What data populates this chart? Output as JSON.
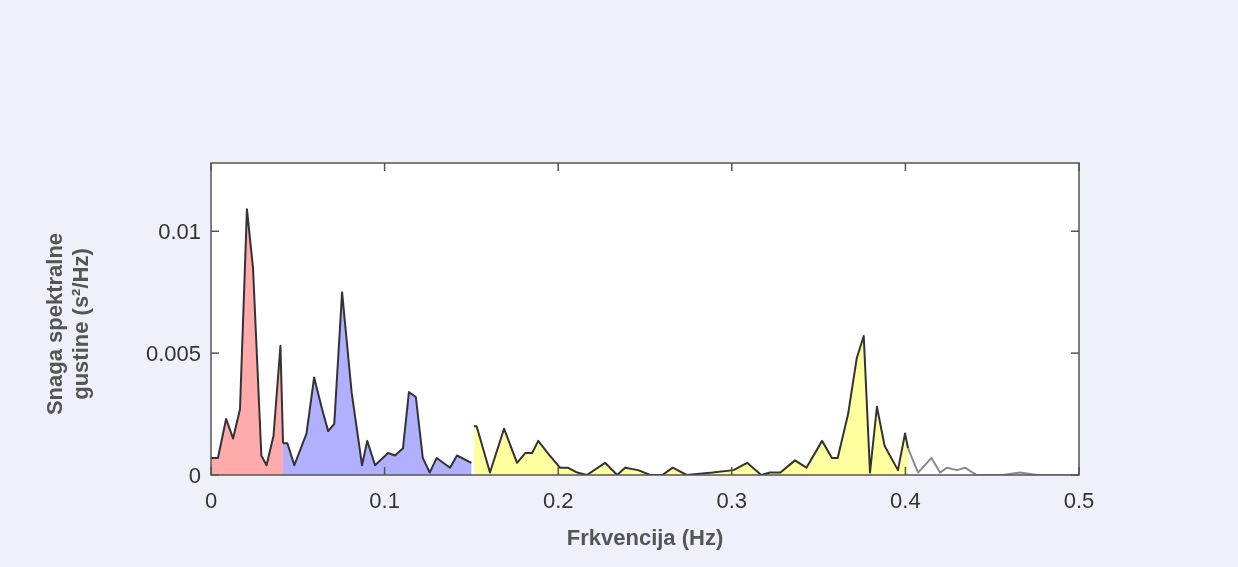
{
  "chart_data": {
    "type": "area",
    "xlabel": "Frkvencija (Hz)",
    "ylabel": "Snaga spektralne gustine (s²/Hz)",
    "xlim": [
      0,
      0.5
    ],
    "xticks": [
      0,
      0.1,
      0.2,
      0.3,
      0.4,
      0.5
    ],
    "ylim": [
      0,
      0.0128
    ],
    "yticks": [
      0,
      0.005,
      0.01
    ],
    "grid": false,
    "series": [
      {
        "color": "#ffabab",
        "x": [
          0,
          0.004,
          0.0087,
          0.0127,
          0.0167,
          0.0207,
          0.0242,
          0.029,
          0.032,
          0.036,
          0.04,
          0.0415
        ],
        "values": [
          0.0007,
          0.0007,
          0.0023,
          0.0015,
          0.0027,
          0.0109,
          0.0085,
          0.0008,
          0.0004,
          0.0016,
          0.0053,
          0.0013
        ]
      },
      {
        "color": "#b0b0ff",
        "x": [
          0.0415,
          0.044,
          0.048,
          0.055,
          0.0594,
          0.064,
          0.0675,
          0.071,
          0.0755,
          0.081,
          0.087,
          0.09,
          0.0945,
          0.102,
          0.106,
          0.1106,
          0.114,
          0.118,
          0.122,
          0.126,
          0.13,
          0.1377,
          0.1417,
          0.15
        ],
        "values": [
          0.0013,
          0.0013,
          0.0004,
          0.0017,
          0.004,
          0.0027,
          0.0018,
          0.0021,
          0.0075,
          0.0034,
          0.0004,
          0.0014,
          0.0004,
          0.0009,
          0.0008,
          0.0011,
          0.0034,
          0.0032,
          0.0007,
          0.0001,
          0.0007,
          0.0003,
          0.0008,
          0.0005
        ]
      },
      {
        "color": "#ffff9f",
        "x": [
          0.1515,
          0.153,
          0.1607,
          0.1688,
          0.1763,
          0.181,
          0.185,
          0.1885,
          0.194,
          0.201,
          0.2055,
          0.211,
          0.2165,
          0.227,
          0.234,
          0.2385,
          0.246,
          0.253,
          0.26,
          0.266,
          0.274,
          0.289,
          0.301,
          0.3088,
          0.317,
          0.322,
          0.328,
          0.3364,
          0.343,
          0.352,
          0.3577,
          0.361,
          0.367,
          0.372,
          0.376,
          0.3796,
          0.3836,
          0.388,
          0.3957,
          0.3998,
          0.4015
        ],
        "values": [
          0.002,
          0.002,
          0.0001,
          0.0019,
          0.0005,
          0.0009,
          0.0009,
          0.0014,
          0.0009,
          0.0003,
          0.0003,
          0.0001,
          0,
          0.0005,
          0,
          0.0003,
          0.0002,
          0,
          0,
          0.0003,
          0,
          0.0001,
          0.0002,
          0.0005,
          0,
          0.0001,
          0.0001,
          0.0006,
          0.0003,
          0.0014,
          0.0007,
          0.0007,
          0.0025,
          0.0048,
          0.0057,
          0.0001,
          0.0028,
          0.0012,
          0.0002,
          0.0017,
          0.0011
        ]
      },
      {
        "type": "line",
        "color": "#8a8a8a",
        "x": [
          0.4015,
          0.4073,
          0.415,
          0.42,
          0.424,
          0.4297,
          0.4343,
          0.441,
          0.456,
          0.466,
          0.476,
          0.5
        ],
        "values": [
          0.0011,
          0.0001,
          0.0007,
          0.0001,
          0.0003,
          0.0002,
          0.0003,
          0,
          0,
          0.0001,
          0,
          0
        ]
      }
    ]
  }
}
